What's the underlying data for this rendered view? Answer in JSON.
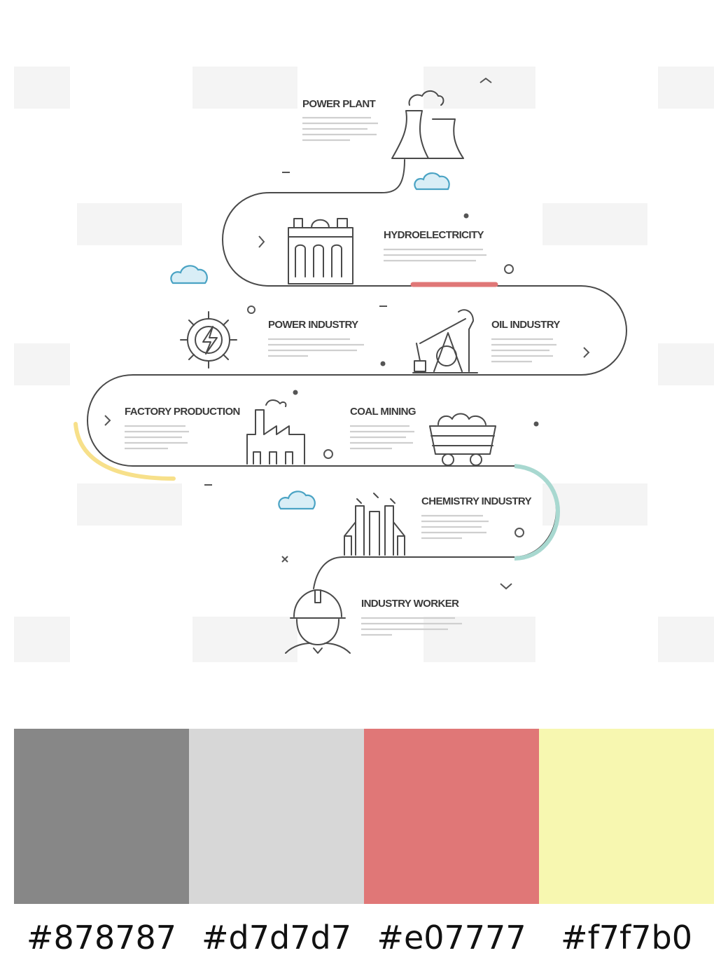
{
  "steps": {
    "power_plant": "POWER PLANT",
    "hydroelectricity": "HYDROELECTRICITY",
    "power_industry": "POWER INDUSTRY",
    "oil_industry": "OIL INDUSTRY",
    "factory_production": "FACTORY PRODUCTION",
    "coal_mining": "COAL MINING",
    "chemistry_industry": "CHEMISTRY INDUSTRY",
    "industry_worker": "INDUSTRY WORKER"
  },
  "palette": [
    {
      "hex": "#878787",
      "color": "#878787"
    },
    {
      "hex": "#d7d7d7",
      "color": "#d7d7d7"
    },
    {
      "hex": "#e07777",
      "color": "#e07777"
    },
    {
      "hex": "#f7f7b0",
      "color": "#f7f7b0"
    }
  ]
}
